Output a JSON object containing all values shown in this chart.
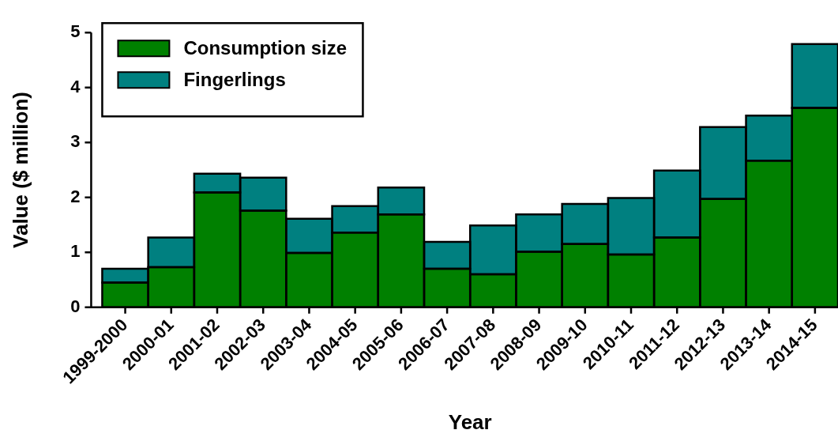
{
  "chart_data": {
    "type": "bar",
    "stacked": true,
    "xlabel": "Year",
    "ylabel": "Value ($ million)",
    "categories": [
      "1999-2000",
      "2000-01",
      "2001-02",
      "2002-03",
      "2003-04",
      "2004-05",
      "2005-06",
      "2006-07",
      "2007-08",
      "2008-09",
      "2009-10",
      "2010-11",
      "2011-12",
      "2012-13",
      "2013-14",
      "2014-15"
    ],
    "series": [
      {
        "name": "Consumption size",
        "color": "#008000",
        "values": [
          0.45,
          0.73,
          2.09,
          1.76,
          0.99,
          1.36,
          1.69,
          0.7,
          0.6,
          1.01,
          1.15,
          0.96,
          1.27,
          1.97,
          2.67,
          3.63
        ]
      },
      {
        "name": "Fingerlings",
        "color": "#008080",
        "values": [
          0.25,
          0.54,
          0.34,
          0.6,
          0.62,
          0.48,
          0.49,
          0.49,
          0.89,
          0.68,
          0.73,
          1.03,
          1.22,
          1.31,
          0.82,
          1.16
        ]
      }
    ],
    "ylim": [
      0,
      5
    ],
    "yticks": [
      0,
      1,
      2,
      3,
      4,
      5
    ],
    "grid": false,
    "legend": "top left"
  }
}
